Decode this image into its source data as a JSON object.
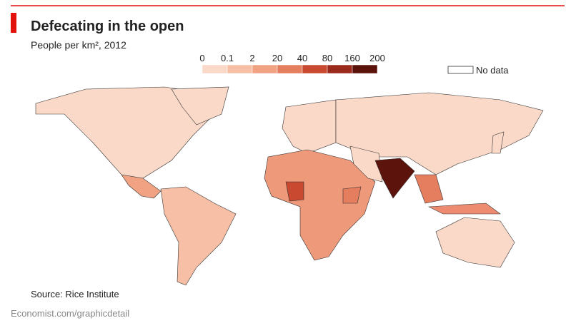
{
  "header": {
    "title": "Defecating in the open",
    "subtitle": "People per km², 2012"
  },
  "legend": {
    "ticks": [
      0,
      0.1,
      2,
      20,
      40,
      80,
      160,
      200
    ],
    "colors": [
      "#fbd9c8",
      "#f7c0a6",
      "#f0a283",
      "#e57d5f",
      "#c8492f",
      "#9b2a1c",
      "#5c130c"
    ],
    "no_data": "No data"
  },
  "source": "Source: Rice Institute",
  "footer": "Economist.com/graphicdetail"
}
